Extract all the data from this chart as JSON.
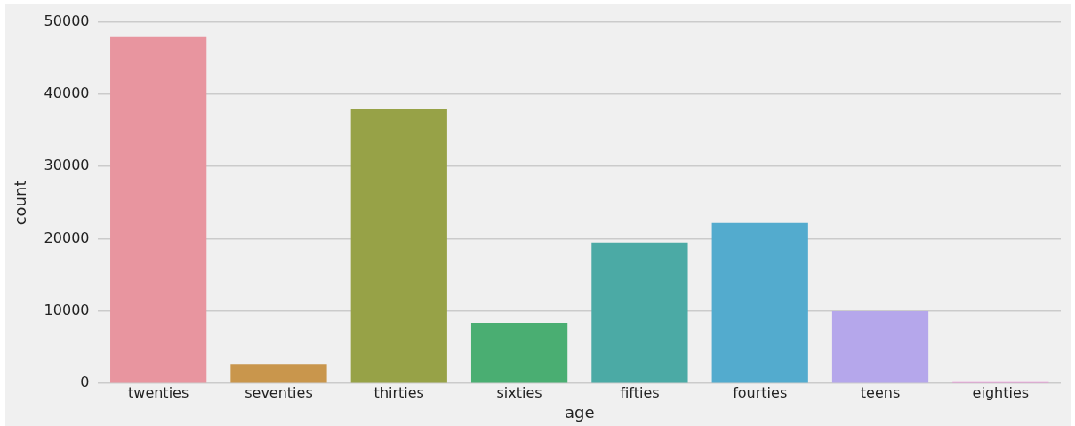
{
  "chart_data": {
    "type": "bar",
    "xlabel": "age",
    "ylabel": "count",
    "categories": [
      "twenties",
      "seventies",
      "thirties",
      "sixties",
      "fifties",
      "fourties",
      "teens",
      "eighties"
    ],
    "values": [
      47900,
      2700,
      37900,
      8400,
      19500,
      22200,
      10000,
      300
    ],
    "colors": [
      "#e8959f",
      "#c9964c",
      "#97a247",
      "#4aae72",
      "#4baaa5",
      "#53abce",
      "#b5a7eb",
      "#e98fd6"
    ],
    "ylim": [
      0,
      50000
    ],
    "yticks": [
      0,
      10000,
      20000,
      30000,
      40000,
      50000
    ],
    "grid": "y"
  }
}
